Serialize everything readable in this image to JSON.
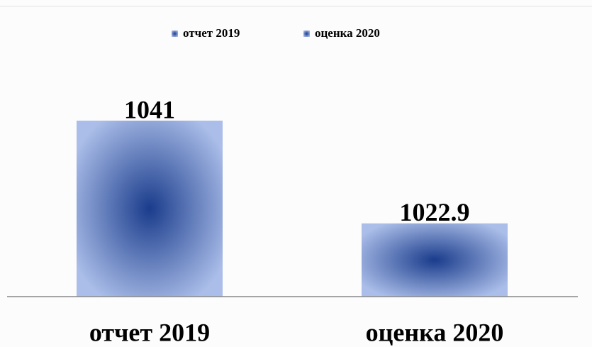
{
  "chart_data": {
    "type": "bar",
    "categories": [
      "отчет 2019",
      "оценка 2020"
    ],
    "values": [
      1041,
      1022.9
    ],
    "color_center": "#1a3c8c",
    "color_edge": "#abbee9",
    "ylim": [
      1010,
      1050
    ],
    "legend": "top"
  }
}
